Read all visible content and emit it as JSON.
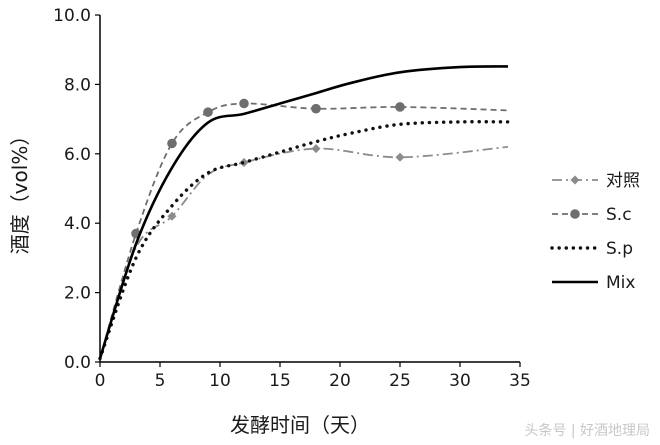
{
  "chart_data": {
    "type": "line",
    "xlabel": "发酵时间（天）",
    "ylabel": "酒度（vol%）",
    "xlim": [
      0,
      35
    ],
    "ylim": [
      0,
      10
    ],
    "x_ticks": [
      "0",
      "5",
      "10",
      "15",
      "20",
      "25",
      "30",
      "35"
    ],
    "y_ticks": [
      "0.0",
      "2.0",
      "4.0",
      "6.0",
      "8.0",
      "10.0"
    ],
    "grid": false,
    "legend_position": "right",
    "series": [
      {
        "name": "对照",
        "style": "dash-dot",
        "color": "#8c8c8c",
        "marker": "diamond",
        "points": [
          [
            0,
            0.1
          ],
          [
            3,
            3.3
          ],
          [
            6,
            4.2
          ],
          [
            9,
            5.4
          ],
          [
            12,
            5.75
          ],
          [
            18,
            6.15
          ],
          [
            25,
            5.9
          ],
          [
            34,
            6.2
          ]
        ],
        "marker_x": [
          6,
          12,
          18,
          25
        ]
      },
      {
        "name": "S.c",
        "style": "dashed",
        "color": "#6e6e6e",
        "marker": "circle",
        "points": [
          [
            0,
            0.1
          ],
          [
            3,
            3.7
          ],
          [
            6,
            6.3
          ],
          [
            9,
            7.2
          ],
          [
            12,
            7.45
          ],
          [
            18,
            7.3
          ],
          [
            25,
            7.35
          ],
          [
            34,
            7.25
          ]
        ],
        "marker_x": [
          3,
          6,
          9,
          12,
          18,
          25
        ]
      },
      {
        "name": "S.p",
        "style": "dotted",
        "color": "#111111",
        "marker": "none",
        "points": [
          [
            0,
            0.1
          ],
          [
            3,
            3.0
          ],
          [
            6,
            4.5
          ],
          [
            9,
            5.45
          ],
          [
            12,
            5.75
          ],
          [
            15,
            6.05
          ],
          [
            18,
            6.35
          ],
          [
            21,
            6.6
          ],
          [
            25,
            6.85
          ],
          [
            30,
            6.92
          ],
          [
            34,
            6.92
          ]
        ],
        "marker_x": []
      },
      {
        "name": "Mix",
        "style": "solid",
        "color": "#000000",
        "marker": "none",
        "points": [
          [
            0,
            0.1
          ],
          [
            3,
            3.4
          ],
          [
            6,
            5.6
          ],
          [
            9,
            6.9
          ],
          [
            12,
            7.15
          ],
          [
            15,
            7.45
          ],
          [
            18,
            7.75
          ],
          [
            21,
            8.05
          ],
          [
            25,
            8.35
          ],
          [
            30,
            8.5
          ],
          [
            34,
            8.52
          ]
        ],
        "marker_x": []
      }
    ]
  },
  "watermark": "头条号 | 好酒地理局"
}
